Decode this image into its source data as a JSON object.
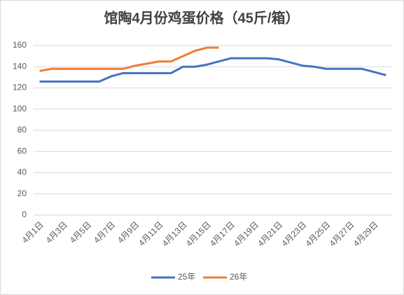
{
  "chart_data": {
    "type": "line",
    "title": "馆陶4月份鸡蛋价格（45斤/箱）",
    "categories": [
      "4月1日",
      null,
      "4月3日",
      null,
      "4月5日",
      null,
      "4月7日",
      null,
      "4月9日",
      null,
      "4月11日",
      null,
      "4月13日",
      null,
      "4月15日",
      null,
      "4月17日",
      null,
      "4月19日",
      null,
      "4月21日",
      null,
      "4月23日",
      null,
      "4月25日",
      null,
      "4月27日",
      null,
      "4月29日",
      null
    ],
    "series": [
      {
        "name": "25年",
        "color": "#4472c4",
        "values": [
          126,
          126,
          126,
          126,
          126,
          126,
          131,
          134,
          134,
          134,
          134,
          134,
          140,
          140,
          142,
          145,
          148,
          148,
          148,
          148,
          147,
          144,
          141,
          140,
          138,
          138,
          138,
          138,
          135,
          132
        ]
      },
      {
        "name": "26年",
        "color": "#ed7d31",
        "values": [
          136,
          138,
          138,
          138,
          138,
          138,
          138,
          138,
          141,
          143,
          145,
          145,
          150,
          155,
          158,
          158,
          null,
          null,
          null,
          null,
          null,
          null,
          null,
          null,
          null,
          null,
          null,
          null,
          null,
          null
        ]
      }
    ],
    "ylim": [
      0,
      160
    ],
    "yticks": [
      0,
      20,
      40,
      60,
      80,
      100,
      120,
      140,
      160
    ],
    "grid": true,
    "legend": "bottom"
  }
}
